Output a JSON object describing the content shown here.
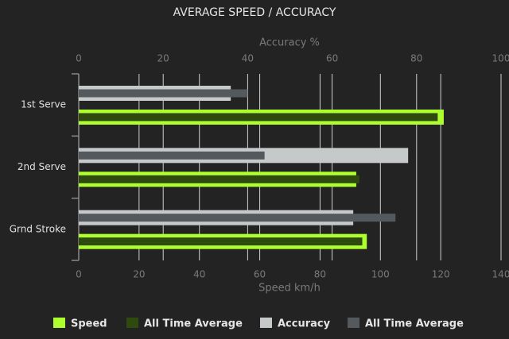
{
  "chart_data": {
    "type": "bar",
    "orientation": "horizontal",
    "title": "AVERAGE SPEED / ACCURACY",
    "categories": [
      "1st Serve",
      "2nd Serve",
      "Grnd Stroke"
    ],
    "xlabel": "Speed km/h",
    "xlim": [
      0,
      140
    ],
    "xticks": [
      0,
      20,
      40,
      60,
      80,
      100,
      120,
      140
    ],
    "x2label": "Accuracy %",
    "x2lim": [
      0,
      100
    ],
    "x2ticks": [
      0,
      20,
      40,
      60,
      80,
      100
    ],
    "grid": true,
    "legend": "bottom",
    "series": [
      {
        "name": "Speed",
        "color": "#adff2f",
        "values": [
          121,
          92,
          95.5
        ],
        "axis": "x"
      },
      {
        "name": "All Time Average",
        "color": "#2e4a0e",
        "values": [
          119,
          93,
          94
        ],
        "axis": "x"
      },
      {
        "name": "Accuracy",
        "color": "#c6c9ca",
        "values": [
          36,
          78,
          65
        ],
        "axis": "x2"
      },
      {
        "name": "All Time Average",
        "color": "#54595e",
        "values": [
          40,
          44,
          75
        ],
        "axis": "x2"
      }
    ]
  }
}
